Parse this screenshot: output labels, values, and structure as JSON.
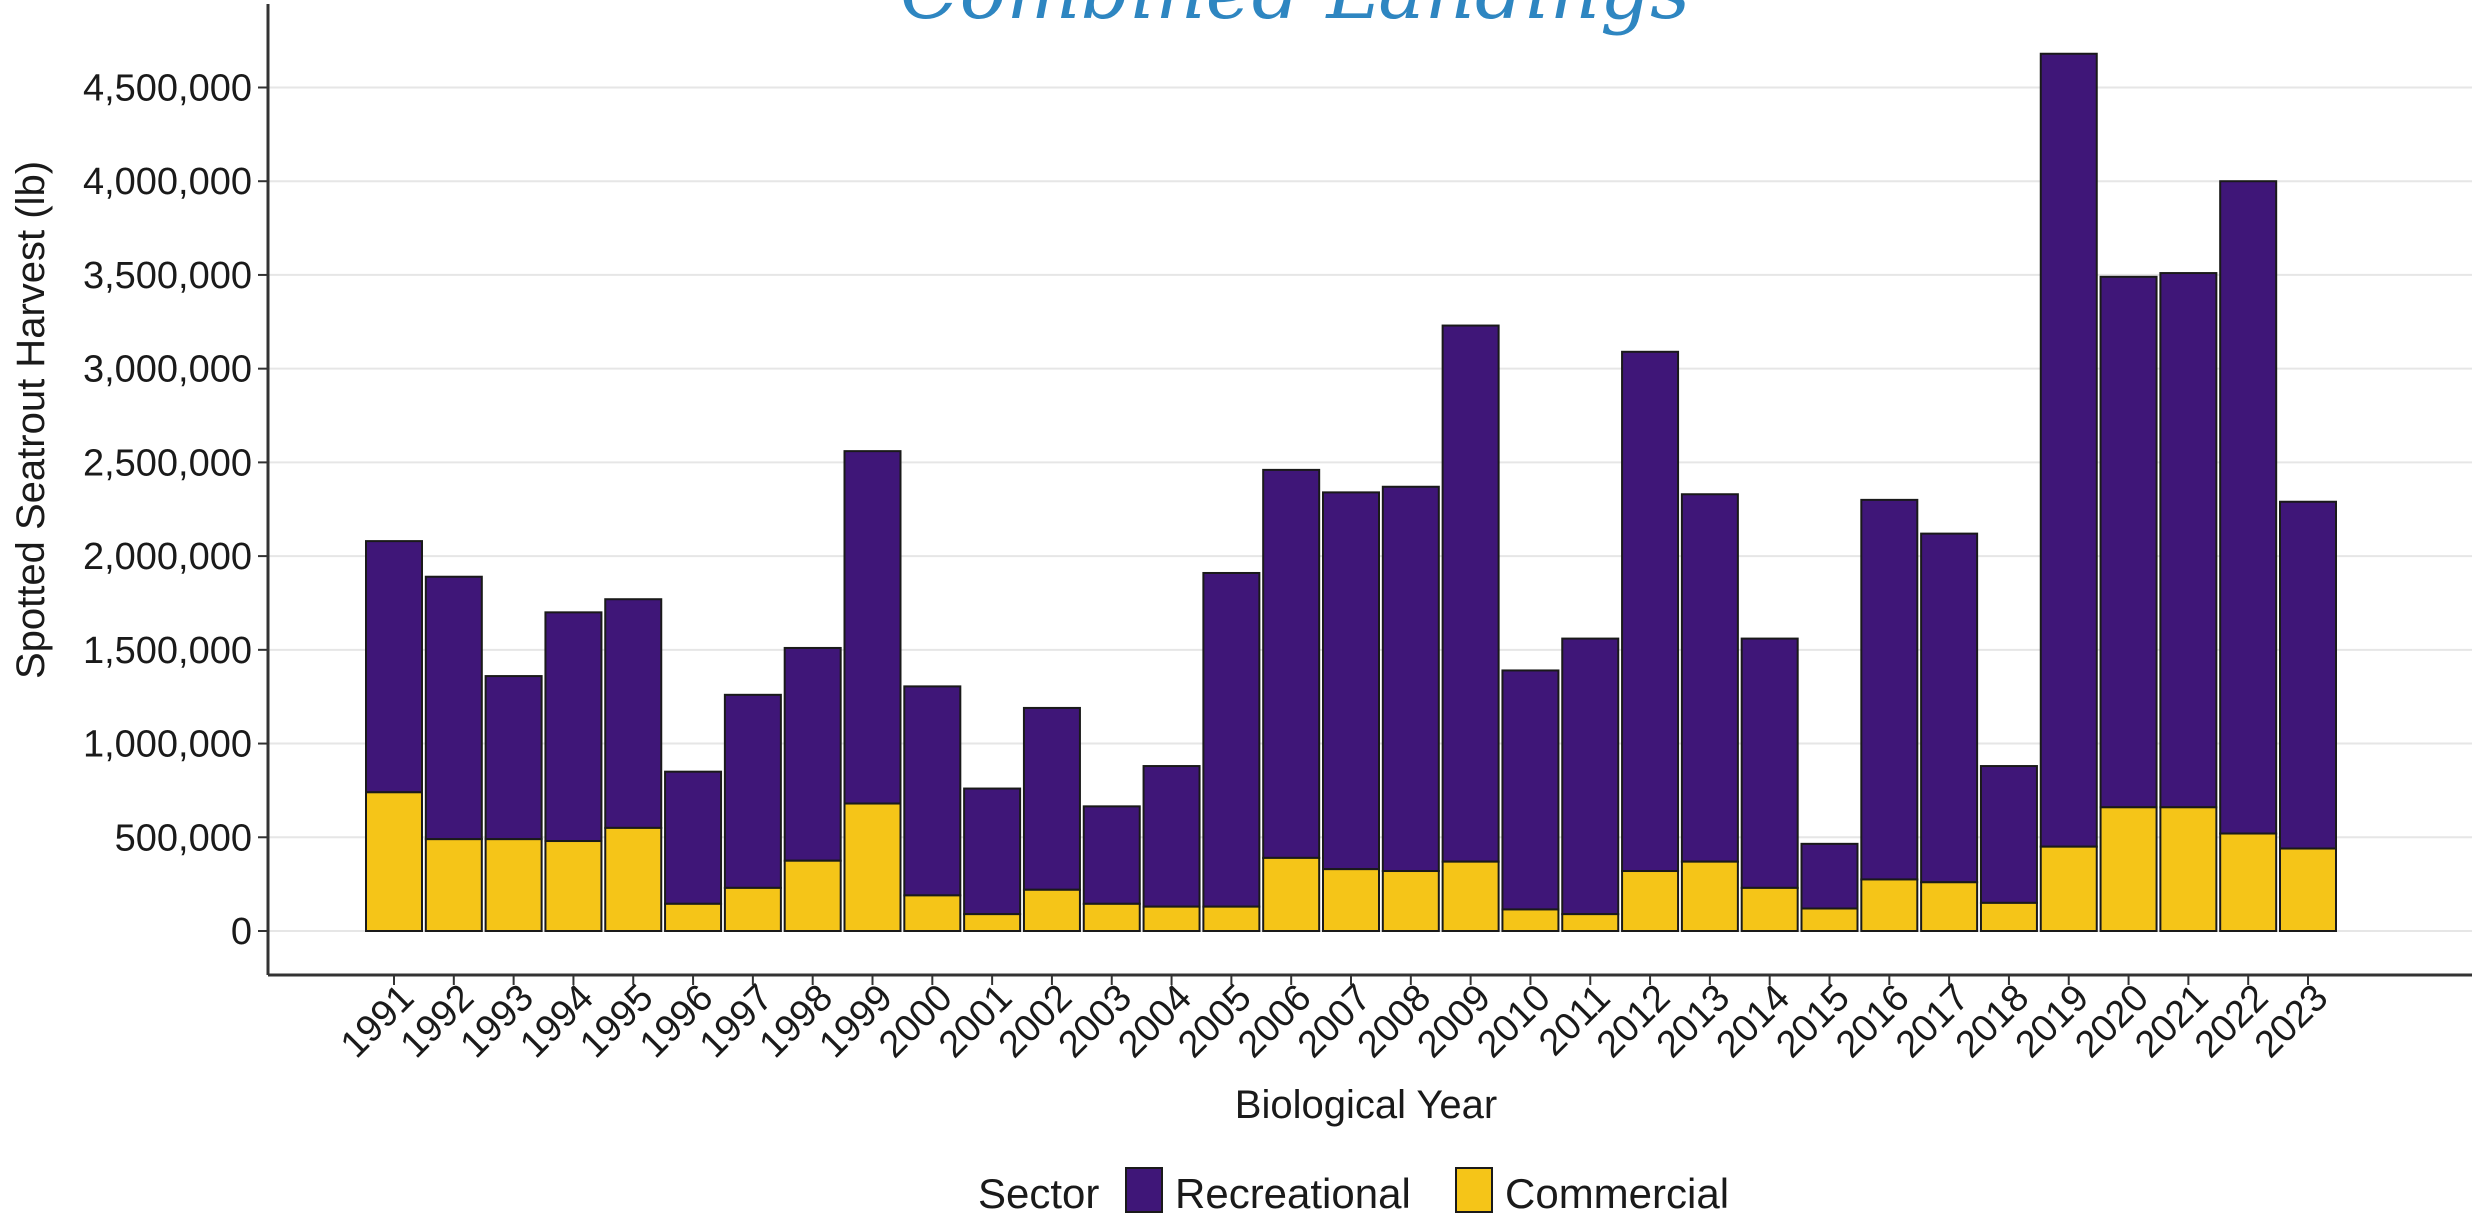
{
  "chart_data": {
    "type": "bar",
    "stacked": true,
    "title": "Combined Landings",
    "xlabel": "Biological Year",
    "ylabel": "Spotted Seatrout Harvest (lb)",
    "ylim": [
      0,
      4800000
    ],
    "yticks": [
      0,
      500000,
      1000000,
      1500000,
      2000000,
      2500000,
      3000000,
      3500000,
      4000000,
      4500000
    ],
    "ytick_labels": [
      "0",
      "500,000",
      "1,000,000",
      "1,500,000",
      "2,000,000",
      "2,500,000",
      "3,000,000",
      "3,500,000",
      "4,000,000",
      "4,500,000"
    ],
    "grid": true,
    "categories": [
      "1991",
      "1992",
      "1993",
      "1994",
      "1995",
      "1996",
      "1997",
      "1998",
      "1999",
      "2000",
      "2001",
      "2002",
      "2003",
      "2004",
      "2005",
      "2006",
      "2007",
      "2008",
      "2009",
      "2010",
      "2011",
      "2012",
      "2013",
      "2014",
      "2015",
      "2016",
      "2017",
      "2018",
      "2019",
      "2020",
      "2021",
      "2022",
      "2023"
    ],
    "series": [
      {
        "name": "Commercial",
        "color": "#F5C518",
        "values": [
          740000,
          490000,
          490000,
          480000,
          550000,
          145000,
          230000,
          375000,
          680000,
          190000,
          90000,
          220000,
          145000,
          130000,
          130000,
          390000,
          330000,
          320000,
          370000,
          115000,
          90000,
          320000,
          370000,
          230000,
          120000,
          275000,
          260000,
          150000,
          450000,
          660000,
          660000,
          520000,
          440000
        ]
      },
      {
        "name": "Recreational",
        "color": "#3F1678",
        "values": [
          1340000,
          1400000,
          870000,
          1220000,
          1220000,
          705000,
          1030000,
          1135000,
          1880000,
          1115000,
          670000,
          970000,
          520000,
          750000,
          1780000,
          2070000,
          2010000,
          2050000,
          2860000,
          1275000,
          1470000,
          2770000,
          1960000,
          1330000,
          345000,
          2025000,
          1860000,
          730000,
          4230000,
          2830000,
          2850000,
          3480000,
          1850000
        ]
      }
    ],
    "legend": {
      "title": "Sector",
      "position": "bottom",
      "order": [
        "Recreational",
        "Commercial"
      ]
    },
    "colors": {
      "title": "#2E86C1",
      "axis": "#333333",
      "grid": "#E6E6E6",
      "bar_edge": "#1a1a1a"
    }
  }
}
